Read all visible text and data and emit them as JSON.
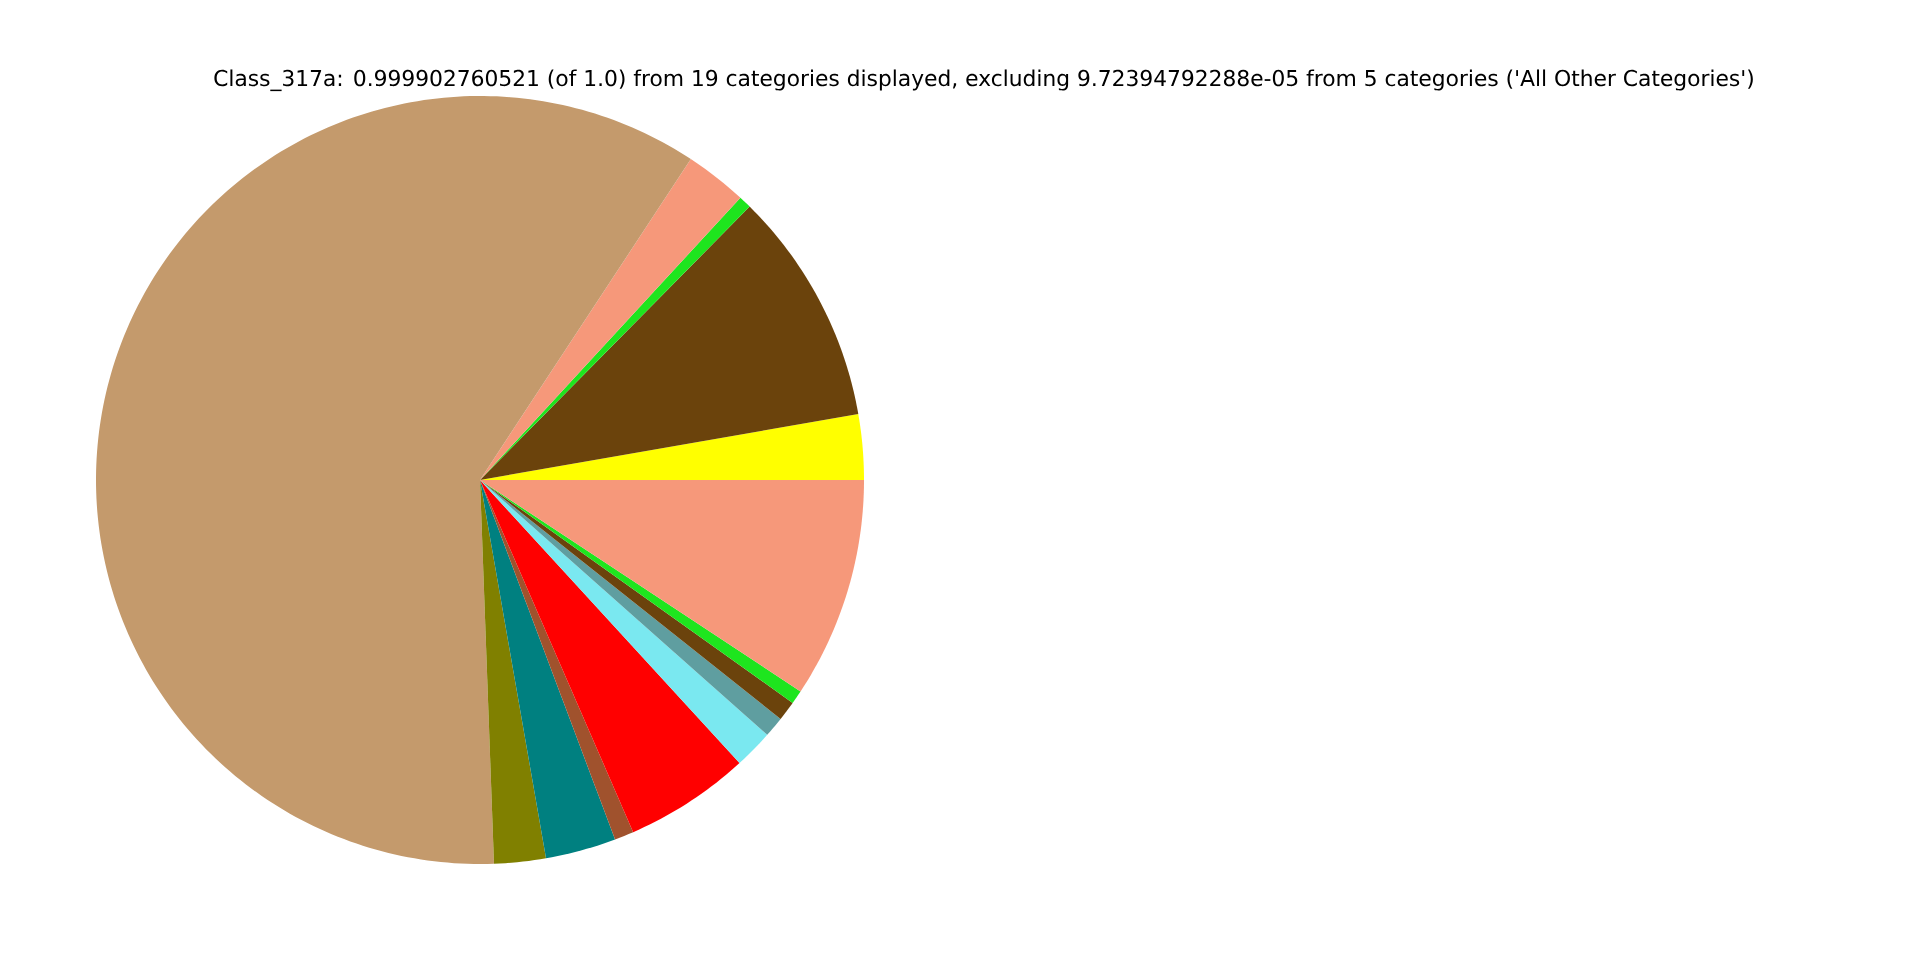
{
  "chart_data": {
    "type": "pie",
    "title": "Class_317a: 0.999902760521 (of 1.0) from 19 categories displayed, excluding 9.72394792288e-05 from 5 categories ('All Other Categories')",
    "categories": [
      null,
      null,
      null,
      null,
      null,
      null,
      null,
      null,
      null,
      null,
      null,
      null,
      null,
      null
    ],
    "values": [
      2.75,
      9.86,
      0.53,
      2.61,
      59.83,
      2.17,
      2.97,
      0.81,
      5.28,
      1.64,
      0.86,
      0.83,
      0.58,
      9.28
    ],
    "colors": [
      "#ffff00",
      "#6b430c",
      "#1ee51e",
      "#f6987a",
      "#c49a6c",
      "#808000",
      "#008080",
      "#a0522d",
      "#ff0000",
      "#7ae8f0",
      "#5f9ea0",
      "#6b430c",
      "#1ee51e",
      "#f6987a"
    ]
  }
}
